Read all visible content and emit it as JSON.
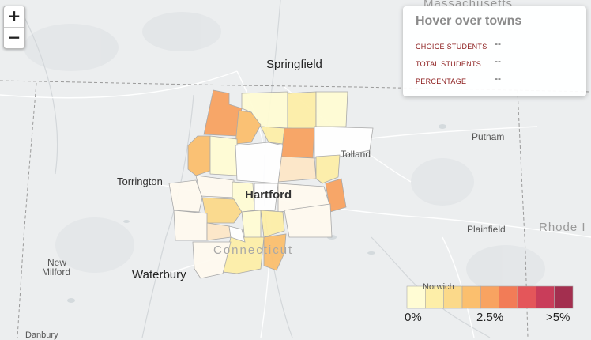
{
  "zoom": {
    "in_label": "+",
    "out_label": "−"
  },
  "info": {
    "title": "Hover over towns",
    "rows": [
      {
        "label": "CHOICE STUDENTS",
        "value": "--"
      },
      {
        "label": "TOTAL STUDENTS",
        "value": "--"
      },
      {
        "label": "PERCENTAGE",
        "value": "--"
      }
    ]
  },
  "places": {
    "springfield": "Springfield",
    "tolland": "Tolland",
    "putnam": "Putnam",
    "torrington": "Torrington",
    "hartford": "Hartford",
    "plainfield": "Plainfield",
    "rhode_island": "Rhode I",
    "new_milford_1": "New",
    "new_milford_2": "Milford",
    "waterbury": "Waterbury",
    "connecticut": "Connecticut",
    "norwich": "Norwich",
    "danbury": "Danbury",
    "massachusetts": "Massachusetts"
  },
  "legend": {
    "colors": [
      "#fffcd4",
      "#fdeea8",
      "#fbd98a",
      "#fbbf6e",
      "#f8a361",
      "#f27c57",
      "#e4565a",
      "#c93d5a",
      "#a32f4f"
    ],
    "label_min": "0%",
    "label_mid": "2.5%",
    "label_max": ">5%"
  }
}
